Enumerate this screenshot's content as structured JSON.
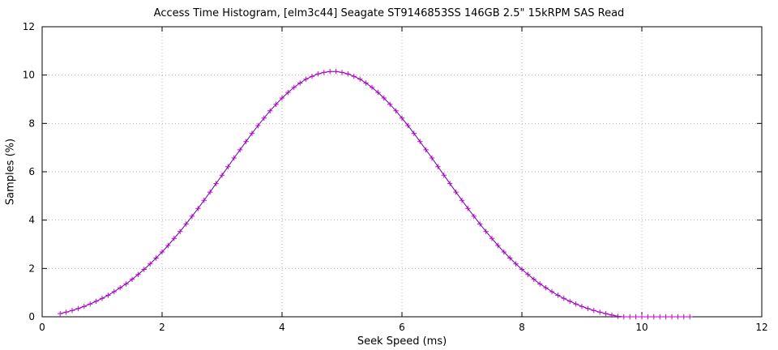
{
  "chart_data": {
    "type": "line",
    "title": "Access Time Histogram, [elm3c44] Seagate ST9146853SS 146GB 2.5\" 15kRPM SAS Read",
    "xlabel": "Seek Speed (ms)",
    "ylabel": "Samples (%)",
    "xlim": [
      0,
      12
    ],
    "ylim": [
      0,
      12
    ],
    "xticks": [
      0,
      2,
      4,
      6,
      8,
      10,
      12
    ],
    "yticks": [
      0,
      2,
      4,
      6,
      8,
      10,
      12
    ],
    "grid": true,
    "legend": "none",
    "marker": "plus",
    "line_color": "#5b00b8",
    "marker_color": "#c800c8",
    "grid_color": "#b4b4b4",
    "border_color": "#000000",
    "x": [
      0.3,
      0.4,
      0.5,
      0.6,
      0.7,
      0.8,
      0.9,
      1,
      1.1,
      1.2,
      1.3,
      1.4,
      1.5,
      1.6,
      1.7,
      1.8,
      1.9,
      2,
      2.1,
      2.2,
      2.3,
      2.4,
      2.5,
      2.6,
      2.7,
      2.8,
      2.9,
      3,
      3.1,
      3.2,
      3.3,
      3.4,
      3.5,
      3.6,
      3.7,
      3.8,
      3.9,
      4,
      4.1,
      4.2,
      4.3,
      4.4,
      4.5,
      4.6,
      4.7,
      4.8,
      4.9,
      5,
      5.1,
      5.2,
      5.3,
      5.4,
      5.5,
      5.6,
      5.7,
      5.8,
      5.9,
      6,
      6.1,
      6.2,
      6.3,
      6.4,
      6.5,
      6.6,
      6.7,
      6.8,
      6.9,
      7,
      7.1,
      7.2,
      7.3,
      7.4,
      7.5,
      7.6,
      7.7,
      7.8,
      7.9,
      8,
      8.1,
      8.2,
      8.3,
      8.4,
      8.5,
      8.6,
      8.7,
      8.8,
      8.9,
      9,
      9.1,
      9.2,
      9.3,
      9.4,
      9.5,
      9.6,
      9.7,
      9.8,
      9.9,
      10,
      10.1,
      10.2,
      10.3,
      10.4,
      10.5,
      10.6,
      10.7,
      10.8
    ],
    "y": [
      0.13,
      0.19,
      0.26,
      0.34,
      0.43,
      0.53,
      0.64,
      0.76,
      0.89,
      1.04,
      1.2,
      1.36,
      1.55,
      1.75,
      1.96,
      2.19,
      2.43,
      2.68,
      2.95,
      3.24,
      3.53,
      3.84,
      4.16,
      4.48,
      4.82,
      5.16,
      5.51,
      5.86,
      6.21,
      6.57,
      6.91,
      7.25,
      7.59,
      7.91,
      8.22,
      8.52,
      8.79,
      9.05,
      9.28,
      9.49,
      9.67,
      9.83,
      9.95,
      10.05,
      10.11,
      10.15,
      10.15,
      10.11,
      10.05,
      9.95,
      9.83,
      9.67,
      9.49,
      9.28,
      9.05,
      8.79,
      8.52,
      8.22,
      7.91,
      7.59,
      7.25,
      6.91,
      6.57,
      6.21,
      5.86,
      5.51,
      5.16,
      4.82,
      4.48,
      4.16,
      3.84,
      3.53,
      3.24,
      2.95,
      2.68,
      2.43,
      2.19,
      1.96,
      1.75,
      1.55,
      1.36,
      1.2,
      1.04,
      0.89,
      0.76,
      0.64,
      0.53,
      0.43,
      0.34,
      0.26,
      0.19,
      0.13,
      0.07,
      0.02,
      0,
      0,
      0,
      0,
      0,
      0,
      0,
      0,
      0,
      0,
      0,
      0
    ]
  }
}
